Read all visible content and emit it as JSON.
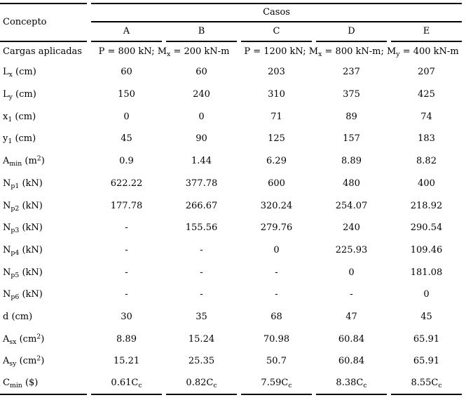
{
  "page": {
    "background_color": "#ffffff",
    "text_color": "#000000",
    "rule_color": "#000000"
  },
  "table": {
    "header": {
      "concepto": "Concepto",
      "casos": "Casos",
      "cases": [
        "A",
        "B",
        "C",
        "D",
        "E"
      ]
    },
    "loads_row": {
      "label": "Cargas aplicadas",
      "cells": [
        {
          "text": "P = 800 kN; M_{x} = 200 kN-m",
          "colspan": 2
        },
        {
          "text": "P = 1200 kN; M_{x} = 800 kN-m; M_{y} = 400 kN-m",
          "colspan": 3
        }
      ]
    },
    "rows": [
      {
        "label": "L_{x} (cm)",
        "values": [
          "60",
          "60",
          "203",
          "237",
          "207"
        ]
      },
      {
        "label": "L_{y} (cm)",
        "values": [
          "150",
          "240",
          "310",
          "375",
          "425"
        ]
      },
      {
        "label": "x_{1} (cm)",
        "values": [
          "0",
          "0",
          "71",
          "89",
          "74"
        ]
      },
      {
        "label": "y_{1} (cm)",
        "values": [
          "45",
          "90",
          "125",
          "157",
          "183"
        ]
      },
      {
        "label": "A_{min} (m^{2})",
        "values": [
          "0.9",
          "1.44",
          "6.29",
          "8.89",
          "8.82"
        ]
      },
      {
        "label": "N_{p1} (kN)",
        "values": [
          "622.22",
          "377.78",
          "600",
          "480",
          "400"
        ]
      },
      {
        "label": "N_{p2} (kN)",
        "values": [
          "177.78",
          "266.67",
          "320.24",
          "254.07",
          "218.92"
        ]
      },
      {
        "label": "N_{p3} (kN)",
        "values": [
          "-",
          "155.56",
          "279.76",
          "240",
          "290.54"
        ]
      },
      {
        "label": "N_{p4} (kN)",
        "values": [
          "-",
          "-",
          "0",
          "225.93",
          "109.46"
        ]
      },
      {
        "label": "N_{p5} (kN)",
        "values": [
          "-",
          "-",
          "-",
          "0",
          "181.08"
        ]
      },
      {
        "label": "N_{p6} (kN)",
        "values": [
          "-",
          "-",
          "-",
          "-",
          "0"
        ]
      },
      {
        "label": "d (cm)",
        "values": [
          "30",
          "35",
          "68",
          "47",
          "45"
        ]
      },
      {
        "label": "A_{sx} (cm^{2})",
        "values": [
          "8.89",
          "15.24",
          "70.98",
          "60.84",
          "65.91"
        ]
      },
      {
        "label": "A_{sy} (cm^{2})",
        "values": [
          "15.21",
          "25.35",
          "50.7",
          "60.84",
          "65.91"
        ]
      },
      {
        "label": "C_{min} ($)",
        "values": [
          "0.61C_{c}",
          "0.82C_{c}",
          "7.59C_{c}",
          "8.38C_{c}",
          "8.55C_{c}"
        ]
      }
    ]
  }
}
